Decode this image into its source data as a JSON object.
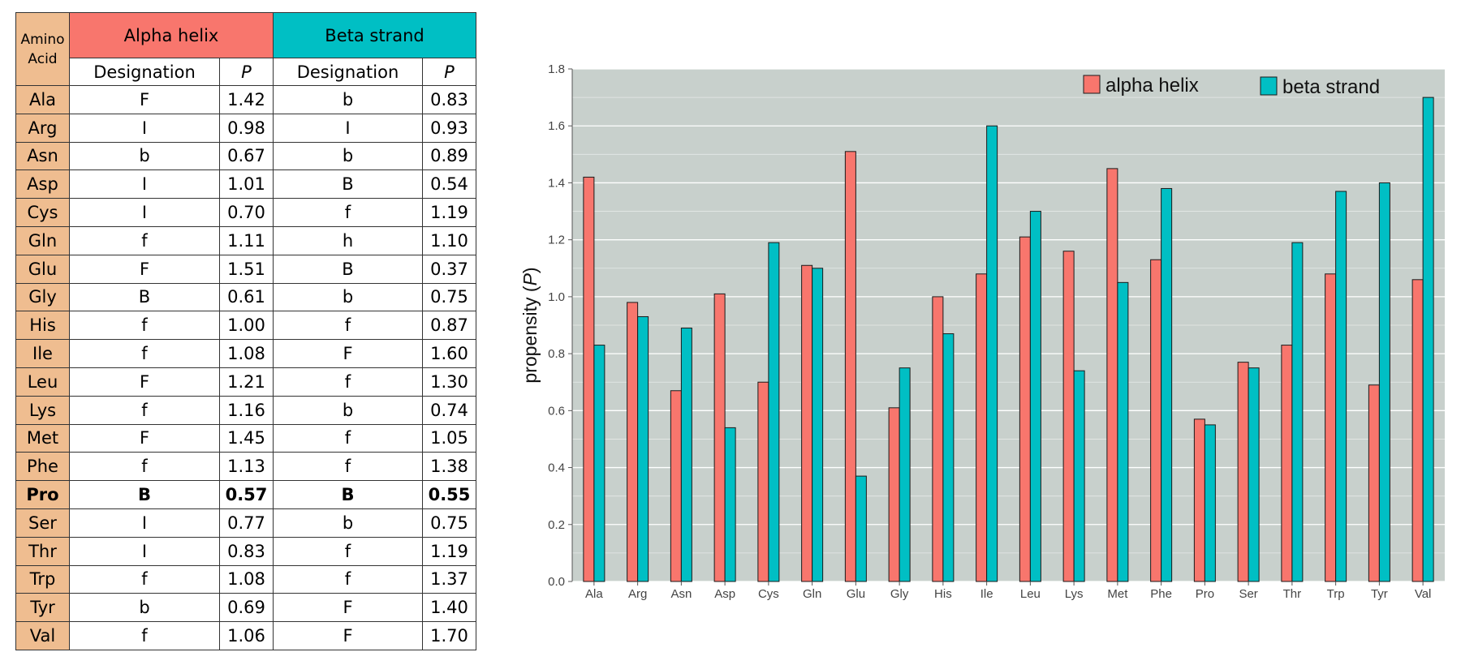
{
  "table": {
    "header": {
      "amino_acid": "Amino Acid",
      "alpha_group": "Alpha helix",
      "beta_group": "Beta strand",
      "designation": "Designation",
      "p": "P"
    },
    "rows": [
      {
        "aa": "Ala",
        "alpha_des": "F",
        "alpha_p": "1.42",
        "beta_des": "b",
        "beta_p": "0.83"
      },
      {
        "aa": "Arg",
        "alpha_des": "I",
        "alpha_p": "0.98",
        "beta_des": "I",
        "beta_p": "0.93"
      },
      {
        "aa": "Asn",
        "alpha_des": "b",
        "alpha_p": "0.67",
        "beta_des": "b",
        "beta_p": "0.89"
      },
      {
        "aa": "Asp",
        "alpha_des": "I",
        "alpha_p": "1.01",
        "beta_des": "B",
        "beta_p": "0.54"
      },
      {
        "aa": "Cys",
        "alpha_des": "I",
        "alpha_p": "0.70",
        "beta_des": "f",
        "beta_p": "1.19"
      },
      {
        "aa": "Gln",
        "alpha_des": "f",
        "alpha_p": "1.11",
        "beta_des": "h",
        "beta_p": "1.10"
      },
      {
        "aa": "Glu",
        "alpha_des": "F",
        "alpha_p": "1.51",
        "beta_des": "B",
        "beta_p": "0.37"
      },
      {
        "aa": "Gly",
        "alpha_des": "B",
        "alpha_p": "0.61",
        "beta_des": "b",
        "beta_p": "0.75"
      },
      {
        "aa": "His",
        "alpha_des": "f",
        "alpha_p": "1.00",
        "beta_des": "f",
        "beta_p": "0.87"
      },
      {
        "aa": "Ile",
        "alpha_des": "f",
        "alpha_p": "1.08",
        "beta_des": "F",
        "beta_p": "1.60"
      },
      {
        "aa": "Leu",
        "alpha_des": "F",
        "alpha_p": "1.21",
        "beta_des": "f",
        "beta_p": "1.30"
      },
      {
        "aa": "Lys",
        "alpha_des": "f",
        "alpha_p": "1.16",
        "beta_des": "b",
        "beta_p": "0.74"
      },
      {
        "aa": "Met",
        "alpha_des": "F",
        "alpha_p": "1.45",
        "beta_des": "f",
        "beta_p": "1.05"
      },
      {
        "aa": "Phe",
        "alpha_des": "f",
        "alpha_p": "1.13",
        "beta_des": "f",
        "beta_p": "1.38"
      },
      {
        "aa": "Pro",
        "alpha_des": "B",
        "alpha_p": "0.57",
        "beta_des": "B",
        "beta_p": "0.55"
      },
      {
        "aa": "Ser",
        "alpha_des": "I",
        "alpha_p": "0.77",
        "beta_des": "b",
        "beta_p": "0.75"
      },
      {
        "aa": "Thr",
        "alpha_des": "I",
        "alpha_p": "0.83",
        "beta_des": "f",
        "beta_p": "1.19"
      },
      {
        "aa": "Trp",
        "alpha_des": "f",
        "alpha_p": "1.08",
        "beta_des": "f",
        "beta_p": "1.37"
      },
      {
        "aa": "Tyr",
        "alpha_des": "b",
        "alpha_p": "0.69",
        "beta_des": "F",
        "beta_p": "1.40"
      },
      {
        "aa": "Val",
        "alpha_des": "f",
        "alpha_p": "1.06",
        "beta_des": "F",
        "beta_p": "1.70"
      }
    ]
  },
  "colors": {
    "alpha": "#f8766d",
    "beta": "#00bfc4",
    "amino_col": "#efbd90",
    "panel": "#c8d0cc",
    "grid": "#ffffff"
  },
  "chart_data": {
    "type": "bar",
    "title": "",
    "xlabel": "",
    "ylabel": "propensity (P)",
    "ylabel_main": "propensity",
    "ylabel_symbol": "P",
    "ylim": [
      0,
      1.8
    ],
    "yticks": [
      "0.0",
      "0.2",
      "0.4",
      "0.6",
      "0.8",
      "1.0",
      "1.2",
      "1.4",
      "1.6",
      "1.8"
    ],
    "categories": [
      "Ala",
      "Arg",
      "Asn",
      "Asp",
      "Cys",
      "Gln",
      "Glu",
      "Gly",
      "His",
      "Ile",
      "Leu",
      "Lys",
      "Met",
      "Phe",
      "Pro",
      "Ser",
      "Thr",
      "Trp",
      "Tyr",
      "Val"
    ],
    "series": [
      {
        "name": "alpha helix",
        "values": [
          1.42,
          0.98,
          0.67,
          1.01,
          0.7,
          1.11,
          1.51,
          0.61,
          1.0,
          1.08,
          1.21,
          1.16,
          1.45,
          1.13,
          0.57,
          0.77,
          0.83,
          1.08,
          0.69,
          1.06
        ]
      },
      {
        "name": "beta strand",
        "values": [
          0.83,
          0.93,
          0.89,
          0.54,
          1.19,
          1.1,
          0.37,
          0.75,
          0.87,
          1.6,
          1.3,
          0.74,
          1.05,
          1.38,
          0.55,
          0.75,
          1.19,
          1.37,
          1.4,
          1.7
        ]
      }
    ],
    "legend_position": "top-right",
    "grid": true
  }
}
